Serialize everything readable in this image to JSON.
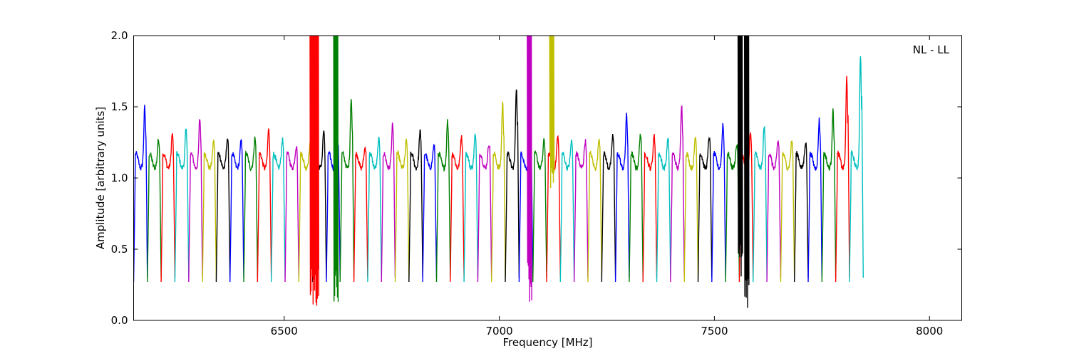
{
  "chart_data": {
    "type": "line",
    "title": "",
    "xlabel": "Frequency [MHz]",
    "ylabel": "Amplitude [arbitrary units]",
    "annotation": "NL - LL",
    "xlim": [
      6150,
      8075
    ],
    "ylim": [
      0.0,
      2.0
    ],
    "x_ticks": [
      6500,
      7000,
      7500,
      8000
    ],
    "y_ticks": [
      0.0,
      0.5,
      1.0,
      1.5,
      2.0
    ],
    "x_tick_labels": [
      "6500",
      "7000",
      "7500",
      "8000"
    ],
    "y_tick_labels": [
      "0.0",
      "0.5",
      "1.0",
      "1.5",
      "2.0"
    ],
    "grid": false,
    "legend": "none",
    "color_cycle": [
      "#0000ff",
      "#008000",
      "#ff0000",
      "#00bfbf",
      "#bf00bf",
      "#bfbf00",
      "#000000"
    ],
    "background_trace_color": "#c0c0c0",
    "subband_width_mhz": 32,
    "subband_start_mhz": 6150,
    "subband_peak_amplitudes": [
      1.46,
      1.23,
      1.27,
      1.3,
      1.38,
      1.22,
      1.24,
      1.22,
      1.24,
      1.3,
      1.23,
      1.18,
      1.18,
      1.29,
      1.23,
      1.52,
      1.17,
      1.23,
      1.33,
      1.22,
      1.29,
      1.18,
      1.36,
      1.25,
      1.26,
      1.2,
      1.49,
      1.6,
      1.31,
      1.22,
      1.25,
      1.22,
      1.22,
      1.24,
      1.26,
      1.4,
      1.27,
      1.26,
      1.23,
      1.48,
      1.25,
      1.25,
      1.34,
      1.19,
      1.27,
      1.32,
      1.22,
      1.22,
      1.21,
      1.37,
      1.43,
      1.67,
      1.83
    ],
    "rfi_spikes": [
      {
        "x": 6565,
        "min": 0.07,
        "max": 2.0,
        "color": "#ff0000"
      },
      {
        "x": 6575,
        "min": 0.07,
        "max": 2.0,
        "color": "#ff0000"
      },
      {
        "x": 6620,
        "min": 0.13,
        "max": 2.0,
        "color": "#008000"
      },
      {
        "x": 7070,
        "min": 0.13,
        "max": 2.0,
        "color": "#bf00bf"
      },
      {
        "x": 7122,
        "min": 0.92,
        "max": 2.0,
        "color": "#bfbf00"
      },
      {
        "x": 7560,
        "min": 0.25,
        "max": 2.0,
        "color": "#000000"
      },
      {
        "x": 7575,
        "min": 0.0,
        "max": 2.0,
        "color": "#000000"
      }
    ]
  }
}
